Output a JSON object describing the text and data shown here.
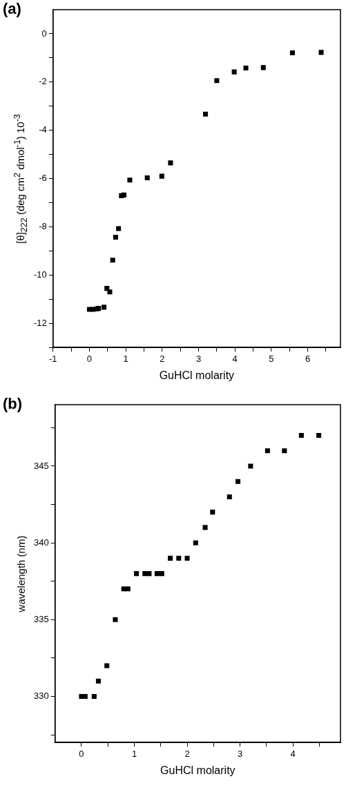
{
  "chart_data": [
    {
      "type": "scatter",
      "title": "(a)",
      "xlabel": "GuHCl molarity",
      "ylabel": "[θ]$_{222}$   (deg cm$^{2}$ dmol$^{-1}$)   10$^{-3}$",
      "marker": "square",
      "grid": false,
      "legend": false,
      "xlim": [
        -1,
        6.9
      ],
      "xticks": [
        -1,
        {
          "value": -0.5,
          "label": null
        },
        0,
        {
          "value": 0.5,
          "label": null
        },
        1,
        {
          "value": 1.5,
          "label": null
        },
        2,
        {
          "value": 2.5,
          "label": null
        },
        3,
        {
          "value": 3.5,
          "label": null
        },
        4,
        {
          "value": 4.5,
          "label": null
        },
        5,
        {
          "value": 5.5,
          "label": null
        },
        6,
        {
          "value": 6.5,
          "label": null
        }
      ],
      "ylim": [
        -13,
        1
      ],
      "yticks": [
        {
          "value": -13,
          "label": null
        },
        -12,
        {
          "value": -11,
          "label": null
        },
        -10,
        {
          "value": -9,
          "label": null
        },
        -8,
        {
          "value": -7,
          "label": null
        },
        -6,
        {
          "value": -5,
          "label": null
        },
        -4,
        {
          "value": -3,
          "label": null
        },
        -2,
        {
          "value": -1,
          "label": null
        },
        0
      ],
      "series": [
        {
          "color": "#000000",
          "x": [
            0,
            0.1,
            0.2,
            0.25,
            0.4,
            0.48,
            0.56,
            0.64,
            0.72,
            0.8,
            0.88,
            0.95,
            1.11,
            1.59,
            1.99,
            2.23,
            3.19,
            3.5,
            3.98,
            4.3,
            4.78,
            5.58,
            6.37
          ],
          "values": [
            -11.42,
            -11.42,
            -11.4,
            -11.38,
            -11.33,
            -10.55,
            -10.7,
            -9.38,
            -8.43,
            -8.07,
            -6.71,
            -6.68,
            -6.06,
            -5.97,
            -5.9,
            -5.35,
            -3.33,
            -1.94,
            -1.58,
            -1.42,
            -1.4,
            -0.79,
            -0.77
          ]
        }
      ]
    },
    {
      "type": "scatter",
      "title": "(b)",
      "xlabel": "GuHCl molarity",
      "ylabel": "wavelength (nm)",
      "marker": "square",
      "grid": false,
      "legend": false,
      "xlim": [
        -0.5,
        4.9
      ],
      "xticks": [
        0,
        {
          "value": 0.5,
          "label": null
        },
        1,
        {
          "value": 1.5,
          "label": null
        },
        2,
        {
          "value": 2.5,
          "label": null
        },
        3,
        {
          "value": 3.5,
          "label": null
        },
        4,
        {
          "value": 4.5,
          "label": null
        }
      ],
      "ylim": [
        327,
        349
      ],
      "yticks": [
        {
          "value": 327.5,
          "label": null
        },
        330,
        {
          "value": 332.5,
          "label": null
        },
        335,
        {
          "value": 337.5,
          "label": null
        },
        340,
        {
          "value": 342.5,
          "label": null
        },
        345,
        {
          "value": 347.5,
          "label": null
        }
      ],
      "series": [
        {
          "color": "#000000",
          "x": [
            0,
            0.07,
            0.24,
            0.32,
            0.48,
            0.64,
            0.8,
            0.88,
            1.04,
            1.2,
            1.28,
            1.43,
            1.52,
            1.68,
            1.84,
            2.0,
            2.16,
            2.34,
            2.48,
            2.8,
            2.96,
            3.2,
            3.52,
            3.84,
            4.16,
            4.49
          ],
          "values": [
            330,
            330,
            330,
            331,
            332,
            335,
            337,
            337,
            338,
            338,
            338,
            338,
            338,
            339,
            339,
            339,
            340,
            341,
            342,
            343,
            344,
            345,
            346,
            346,
            347,
            347
          ]
        }
      ]
    }
  ]
}
